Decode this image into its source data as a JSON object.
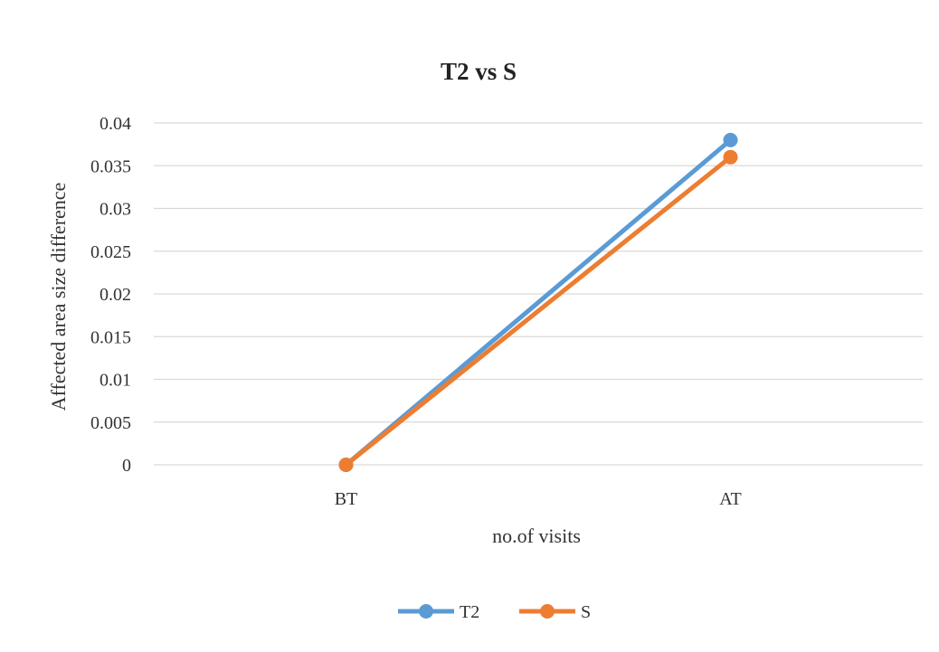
{
  "chart_data": {
    "type": "line",
    "title": "T2 vs S",
    "xlabel": "no.of visits",
    "ylabel": "Affected  area size difference",
    "categories": [
      "BT",
      "AT"
    ],
    "y_ticks": [
      "0",
      "0.005",
      "0.01",
      "0.015",
      "0.02",
      "0.025",
      "0.03",
      "0.035",
      "0.04"
    ],
    "ylim": [
      0,
      0.04
    ],
    "grid": true,
    "legend_position": "bottom",
    "series": [
      {
        "name": "T2",
        "color": "#5b9bd5",
        "values": [
          0,
          0.038
        ]
      },
      {
        "name": "S",
        "color": "#ed7d31",
        "values": [
          0,
          0.036
        ]
      }
    ]
  }
}
